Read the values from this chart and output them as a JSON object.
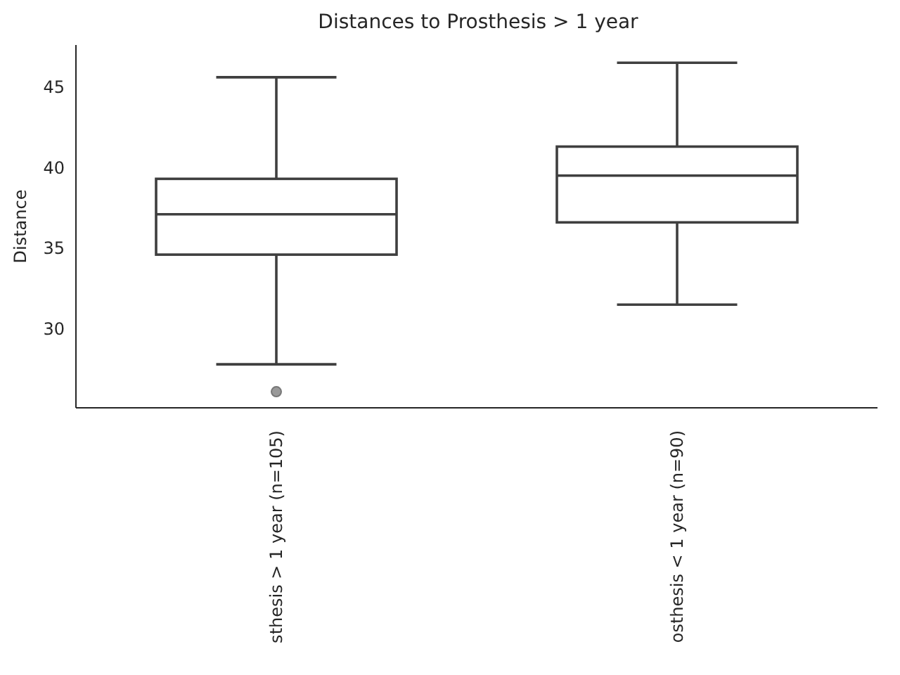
{
  "chart_data": {
    "type": "box",
    "title": "Distances to Prosthesis > 1 year",
    "ylabel": "Distance",
    "categories": [
      "sthesis > 1 year (n=105)",
      "osthesis < 1 year (n=90)"
    ],
    "boxes": [
      {
        "low": 27.8,
        "q1": 34.6,
        "median": 37.1,
        "q3": 39.3,
        "high": 45.6,
        "outliers": [
          26.1
        ]
      },
      {
        "low": 31.5,
        "q1": 36.6,
        "median": 39.5,
        "q3": 41.3,
        "high": 46.5
      }
    ],
    "color": "#3f3f3f",
    "ylim": [
      25.1,
      47.6
    ],
    "yticks": [
      30,
      35,
      40,
      45
    ],
    "grid": false
  }
}
